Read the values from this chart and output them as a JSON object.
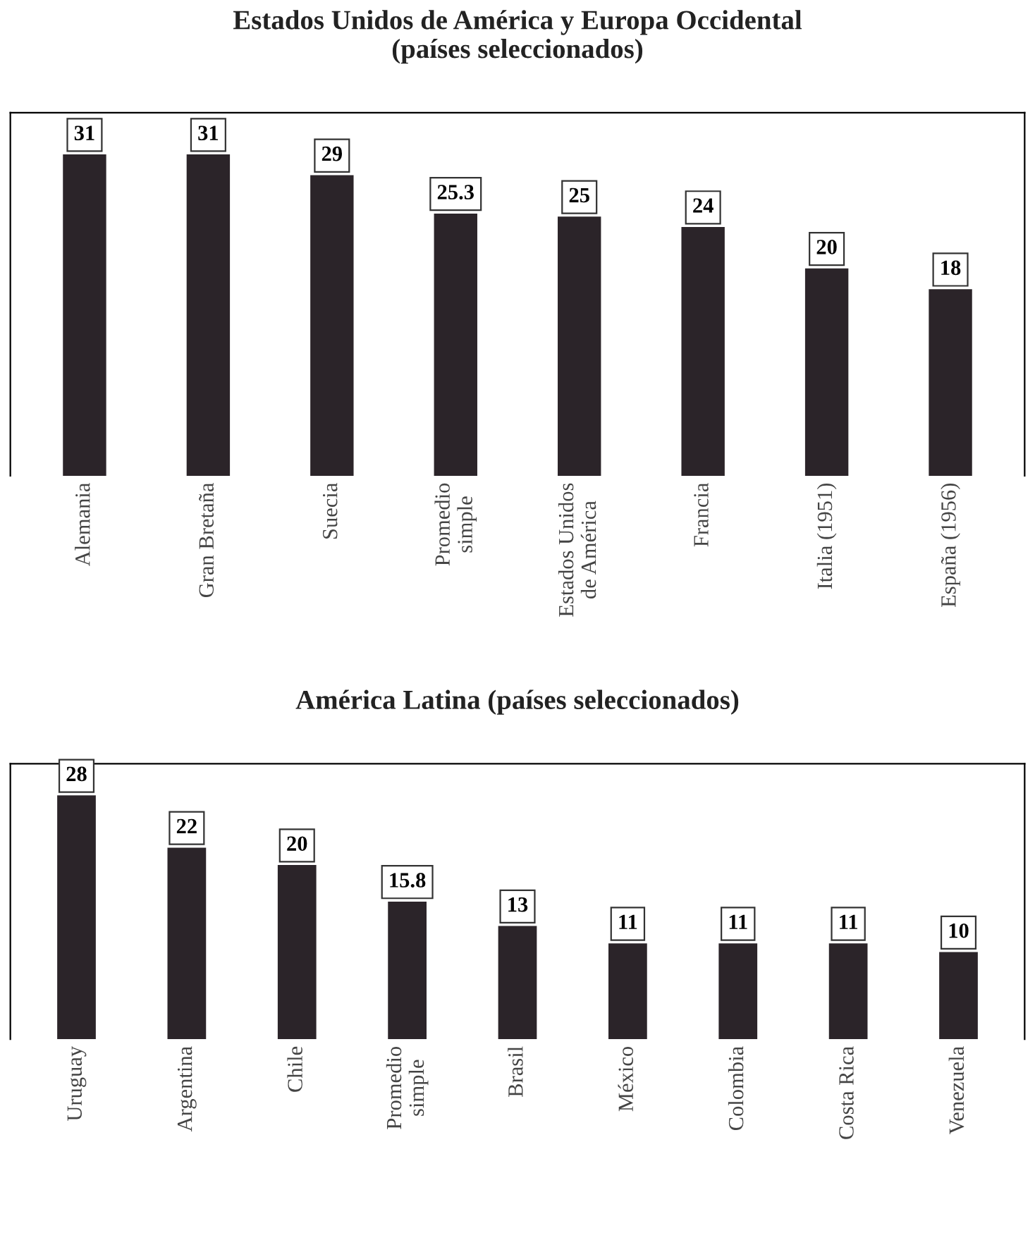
{
  "chart_data": [
    {
      "type": "bar",
      "title": "Estados Unidos de América y Europa Occidental\n(países seleccionados)",
      "categories": [
        "Alemania",
        "Gran Bretaña",
        "Suecia",
        "Promedio\nsimple",
        "Estados Unidos\nde América",
        "Francia",
        "Italia (1951)",
        "España (1956)"
      ],
      "values": [
        31,
        31,
        29,
        25.3,
        25,
        24,
        20,
        18
      ],
      "color": "#2b2429",
      "data_labels": true,
      "grid": false
    },
    {
      "type": "bar",
      "title": "América Latina (países seleccionados)",
      "categories": [
        "Uruguay",
        "Argentina",
        "Chile",
        "Promedio\nsimple",
        "Brasil",
        "México",
        "Colombia",
        "Costa Rica",
        "Venezuela"
      ],
      "values": [
        28,
        22,
        20,
        15.8,
        13,
        11,
        11,
        11,
        10
      ],
      "color": "#2b2429",
      "data_labels": true,
      "grid": false
    }
  ]
}
